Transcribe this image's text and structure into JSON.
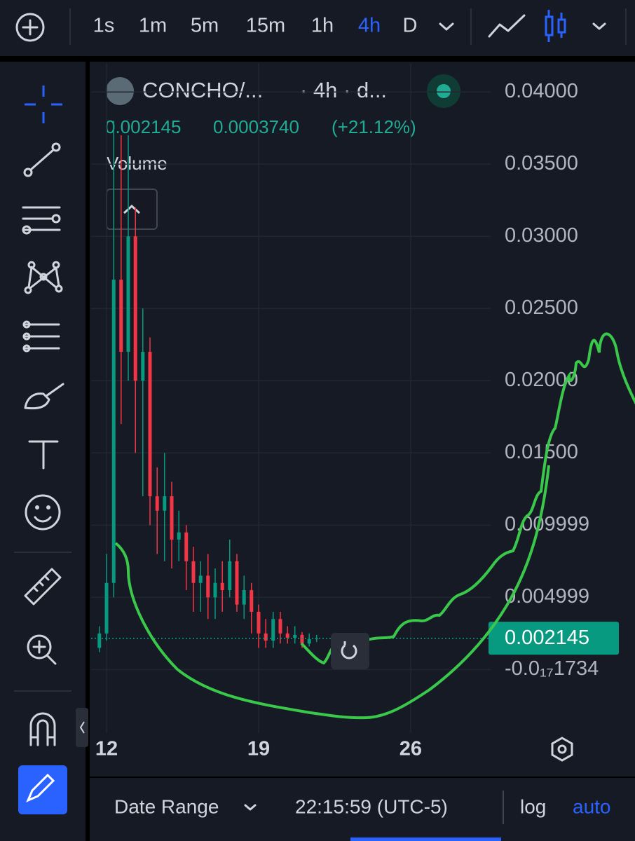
{
  "toolbar": {
    "intervals": [
      "1s",
      "1m",
      "5m",
      "15m",
      "1h",
      "4h",
      "D"
    ],
    "active_index": 5,
    "active_color": "#2962ff"
  },
  "legend": {
    "symbol": "CONCHO/...",
    "meta": "· 4h · d...",
    "price": "0.002145",
    "change": "0.0003740",
    "change_pct": "(+21.12%)",
    "volume": "Volume"
  },
  "chart_data": {
    "type": "candlestick",
    "up_color": "#089981",
    "down_color": "#f23645",
    "xlim": [
      11.29,
      29.68
    ],
    "xticks": [
      12,
      19,
      26
    ],
    "ylim": [
      -0.0044,
      0.042
    ],
    "yticks": [
      {
        "value": 0.04,
        "label": "0.04000"
      },
      {
        "value": 0.035,
        "label": "0.03500"
      },
      {
        "value": 0.03,
        "label": "0.03000"
      },
      {
        "value": 0.025,
        "label": "0.02500"
      },
      {
        "value": 0.02,
        "label": "0.02000"
      },
      {
        "value": 0.015,
        "label": "0.01500"
      },
      0.009999,
      0.004999,
      {
        "value": -1.734e-18,
        "label": "-0.0₁₇1734"
      }
    ],
    "grid": true,
    "last_price": {
      "value": 0.002145,
      "label": "0.002145"
    },
    "candles": [
      {
        "x": 11.67,
        "o": 0.0015,
        "h": 0.003,
        "l": 0.0012,
        "c": 0.0025
      },
      {
        "x": 12.0,
        "o": 0.0025,
        "h": 0.008,
        "l": 0.002,
        "c": 0.006
      },
      {
        "x": 12.33,
        "o": 0.006,
        "h": 0.038,
        "l": 0.005,
        "c": 0.027
      },
      {
        "x": 12.67,
        "o": 0.027,
        "h": 0.037,
        "l": 0.017,
        "c": 0.022
      },
      {
        "x": 13.0,
        "o": 0.022,
        "h": 0.037,
        "l": 0.02,
        "c": 0.03
      },
      {
        "x": 13.33,
        "o": 0.03,
        "h": 0.032,
        "l": 0.015,
        "c": 0.02
      },
      {
        "x": 13.67,
        "o": 0.02,
        "h": 0.025,
        "l": 0.012,
        "c": 0.022
      },
      {
        "x": 14.0,
        "o": 0.022,
        "h": 0.023,
        "l": 0.01,
        "c": 0.012
      },
      {
        "x": 14.33,
        "o": 0.012,
        "h": 0.014,
        "l": 0.008,
        "c": 0.011
      },
      {
        "x": 14.67,
        "o": 0.011,
        "h": 0.015,
        "l": 0.0075,
        "c": 0.012
      },
      {
        "x": 15.0,
        "o": 0.012,
        "h": 0.013,
        "l": 0.007,
        "c": 0.009
      },
      {
        "x": 15.33,
        "o": 0.009,
        "h": 0.011,
        "l": 0.0075,
        "c": 0.0095
      },
      {
        "x": 15.67,
        "o": 0.0095,
        "h": 0.01,
        "l": 0.0055,
        "c": 0.0075
      },
      {
        "x": 16.0,
        "o": 0.0075,
        "h": 0.0085,
        "l": 0.004,
        "c": 0.006
      },
      {
        "x": 16.33,
        "o": 0.006,
        "h": 0.0075,
        "l": 0.004,
        "c": 0.0065
      },
      {
        "x": 16.67,
        "o": 0.0065,
        "h": 0.008,
        "l": 0.0035,
        "c": 0.005
      },
      {
        "x": 17.0,
        "o": 0.005,
        "h": 0.007,
        "l": 0.0035,
        "c": 0.006
      },
      {
        "x": 17.33,
        "o": 0.006,
        "h": 0.0075,
        "l": 0.004,
        "c": 0.0055
      },
      {
        "x": 17.67,
        "o": 0.0055,
        "h": 0.009,
        "l": 0.005,
        "c": 0.0075
      },
      {
        "x": 18.0,
        "o": 0.0075,
        "h": 0.008,
        "l": 0.004,
        "c": 0.0045
      },
      {
        "x": 18.33,
        "o": 0.0045,
        "h": 0.0065,
        "l": 0.0035,
        "c": 0.0055
      },
      {
        "x": 18.67,
        "o": 0.0055,
        "h": 0.006,
        "l": 0.0025,
        "c": 0.004
      },
      {
        "x": 19.0,
        "o": 0.004,
        "h": 0.0045,
        "l": 0.0015,
        "c": 0.0025
      },
      {
        "x": 19.33,
        "o": 0.0025,
        "h": 0.0035,
        "l": 0.0015,
        "c": 0.002
      },
      {
        "x": 19.67,
        "o": 0.002,
        "h": 0.004,
        "l": 0.0015,
        "c": 0.0035
      },
      {
        "x": 20.0,
        "o": 0.0035,
        "h": 0.004,
        "l": 0.0018,
        "c": 0.0025
      },
      {
        "x": 20.33,
        "o": 0.0025,
        "h": 0.003,
        "l": 0.0018,
        "c": 0.0022
      },
      {
        "x": 20.67,
        "o": 0.0022,
        "h": 0.003,
        "l": 0.0018,
        "c": 0.0024
      },
      {
        "x": 21.0,
        "o": 0.0024,
        "h": 0.0026,
        "l": 0.0015,
        "c": 0.0018
      },
      {
        "x": 21.33,
        "o": 0.0018,
        "h": 0.0025,
        "l": 0.0016,
        "c": 0.0021
      },
      {
        "x": 21.67,
        "o": 0.0021,
        "h": 0.0024,
        "l": 0.0019,
        "c": 0.002145
      }
    ]
  },
  "footer": {
    "date_range": "Date Range",
    "time": "22:15:59 (UTC-5)",
    "log": "log",
    "auto": "auto"
  }
}
